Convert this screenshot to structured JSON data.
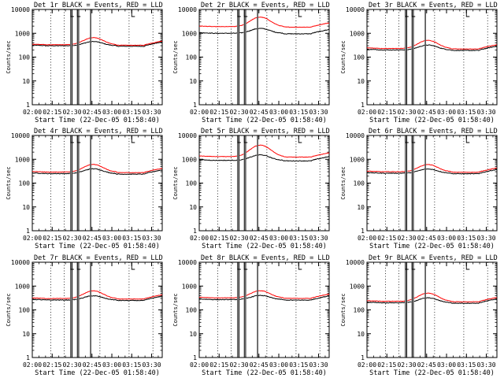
{
  "figure": {
    "background": "#ffffff",
    "colors": {
      "events": "#000000",
      "lld": "#ff0000",
      "axes": "#000000"
    }
  },
  "chart_data": [
    {
      "type": "line",
      "title": "Det 1r BLACK = Events, RED = LLD",
      "xlabel": "Start Time (22-Dec-05 01:58:40)",
      "ylabel": "Counts/sec",
      "x_ticks": [
        "02:00",
        "02:15",
        "02:30",
        "02:45",
        "03:00",
        "03:15",
        "03:30"
      ],
      "xlim": [
        "02:00",
        "03:38"
      ],
      "y_ticks": [
        "1",
        "10",
        "100",
        "1000",
        "10000"
      ],
      "ylim": [
        1,
        10000
      ],
      "yscale": "log",
      "grid": false,
      "series": [
        {
          "name": "Events",
          "color": "#000000",
          "level": "events"
        },
        {
          "name": "LLD",
          "color": "#ff0000",
          "level": "lld"
        }
      ],
      "events_base": 300,
      "lld_base": 330,
      "events_peak_ratio": 1.5,
      "lld_peak_ratio": 2.0
    },
    {
      "type": "line",
      "title": "Det 2r BLACK = Events, RED = LLD",
      "xlabel": "Start Time (22-Dec-05 01:58:40)",
      "ylabel": "Counts/sec",
      "x_ticks": [
        "02:00",
        "02:15",
        "02:30",
        "02:45",
        "03:00",
        "03:15",
        "03:30"
      ],
      "xlim": [
        "02:00",
        "03:38"
      ],
      "y_ticks": [
        "1",
        "10",
        "100",
        "1000",
        "10000"
      ],
      "ylim": [
        1,
        10000
      ],
      "yscale": "log",
      "grid": false,
      "series": [
        {
          "name": "Events",
          "color": "#000000",
          "level": "events"
        },
        {
          "name": "LLD",
          "color": "#ff0000",
          "level": "lld"
        }
      ],
      "events_base": 1000,
      "lld_base": 1900,
      "events_peak_ratio": 1.6,
      "lld_peak_ratio": 2.5
    },
    {
      "type": "line",
      "title": "Det 3r BLACK = Events, RED = LLD",
      "xlabel": "Start Time (22-Dec-05 01:58:40)",
      "ylabel": "Counts/sec",
      "x_ticks": [
        "02:00",
        "02:15",
        "02:30",
        "02:45",
        "03:00",
        "03:15",
        "03:30"
      ],
      "xlim": [
        "02:00",
        "03:38"
      ],
      "y_ticks": [
        "1",
        "10",
        "100",
        "1000",
        "10000"
      ],
      "ylim": [
        1,
        10000
      ],
      "yscale": "log",
      "grid": false,
      "series": [
        {
          "name": "Events",
          "color": "#000000",
          "level": "events"
        },
        {
          "name": "LLD",
          "color": "#ff0000",
          "level": "lld"
        }
      ],
      "events_base": 200,
      "lld_base": 230,
      "events_peak_ratio": 1.6,
      "lld_peak_ratio": 2.2
    },
    {
      "type": "line",
      "title": "Det 4r BLACK = Events, RED = LLD",
      "xlabel": "Start Time (22-Dec-05 01:58:40)",
      "ylabel": "Counts/sec",
      "x_ticks": [
        "02:00",
        "02:15",
        "02:30",
        "02:45",
        "03:00",
        "03:15",
        "03:30"
      ],
      "xlim": [
        "02:00",
        "03:38"
      ],
      "y_ticks": [
        "1",
        "10",
        "100",
        "1000",
        "10000"
      ],
      "ylim": [
        1,
        10000
      ],
      "yscale": "log",
      "grid": false,
      "series": [
        {
          "name": "Events",
          "color": "#000000",
          "level": "events"
        },
        {
          "name": "LLD",
          "color": "#ff0000",
          "level": "lld"
        }
      ],
      "events_base": 250,
      "lld_base": 290,
      "events_peak_ratio": 1.6,
      "lld_peak_ratio": 2.1
    },
    {
      "type": "line",
      "title": "Det 5r BLACK = Events, RED = LLD",
      "xlabel": "Start Time (22-Dec-05 01:58:40)",
      "ylabel": "Counts/sec",
      "x_ticks": [
        "02:00",
        "02:15",
        "02:30",
        "02:45",
        "03:00",
        "03:15",
        "03:30"
      ],
      "xlim": [
        "02:00",
        "03:38"
      ],
      "y_ticks": [
        "1",
        "10",
        "100",
        "1000",
        "10000"
      ],
      "ylim": [
        1,
        10000
      ],
      "yscale": "log",
      "grid": false,
      "series": [
        {
          "name": "Events",
          "color": "#000000",
          "level": "events"
        },
        {
          "name": "LLD",
          "color": "#ff0000",
          "level": "lld"
        }
      ],
      "events_base": 900,
      "lld_base": 1300,
      "events_peak_ratio": 1.7,
      "lld_peak_ratio": 3.0
    },
    {
      "type": "line",
      "title": "Det 6r BLACK = Events, RED = LLD",
      "xlabel": "Start Time (22-Dec-05 01:58:40)",
      "ylabel": "Counts/sec",
      "x_ticks": [
        "02:00",
        "02:15",
        "02:30",
        "02:45",
        "03:00",
        "03:15",
        "03:30"
      ],
      "xlim": [
        "02:00",
        "03:38"
      ],
      "y_ticks": [
        "1",
        "10",
        "100",
        "1000",
        "10000"
      ],
      "ylim": [
        1,
        10000
      ],
      "yscale": "log",
      "grid": false,
      "series": [
        {
          "name": "Events",
          "color": "#000000",
          "level": "events"
        },
        {
          "name": "LLD",
          "color": "#ff0000",
          "level": "lld"
        }
      ],
      "events_base": 260,
      "lld_base": 300,
      "events_peak_ratio": 1.5,
      "lld_peak_ratio": 2.0
    },
    {
      "type": "line",
      "title": "Det 7r BLACK = Events, RED = LLD",
      "xlabel": "Start Time (22-Dec-05 01:58:40)",
      "ylabel": "Counts/sec",
      "x_ticks": [
        "02:00",
        "02:15",
        "02:30",
        "02:45",
        "03:00",
        "03:15",
        "03:30"
      ],
      "xlim": [
        "02:00",
        "03:38"
      ],
      "y_ticks": [
        "1",
        "10",
        "100",
        "1000",
        "10000"
      ],
      "ylim": [
        1,
        10000
      ],
      "yscale": "log",
      "grid": false,
      "series": [
        {
          "name": "Events",
          "color": "#000000",
          "level": "events"
        },
        {
          "name": "LLD",
          "color": "#ff0000",
          "level": "lld"
        }
      ],
      "events_base": 260,
      "lld_base": 300,
      "events_peak_ratio": 1.5,
      "lld_peak_ratio": 2.1
    },
    {
      "type": "line",
      "title": "Det 8r BLACK = Events, RED = LLD",
      "xlabel": "Start Time (22-Dec-05 01:58:40)",
      "ylabel": "Counts/sec",
      "x_ticks": [
        "02:00",
        "02:15",
        "02:30",
        "02:45",
        "03:00",
        "03:15",
        "03:30"
      ],
      "xlim": [
        "02:00",
        "03:38"
      ],
      "y_ticks": [
        "1",
        "10",
        "100",
        "1000",
        "10000"
      ],
      "ylim": [
        1,
        10000
      ],
      "yscale": "log",
      "grid": false,
      "series": [
        {
          "name": "Events",
          "color": "#000000",
          "level": "events"
        },
        {
          "name": "LLD",
          "color": "#ff0000",
          "level": "lld"
        }
      ],
      "events_base": 270,
      "lld_base": 320,
      "events_peak_ratio": 1.5,
      "lld_peak_ratio": 2.0
    },
    {
      "type": "line",
      "title": "Det 9r BLACK = Events, RED = LLD",
      "xlabel": "Start Time (22-Dec-05 01:58:40)",
      "ylabel": "Counts/sec",
      "x_ticks": [
        "02:00",
        "02:15",
        "02:30",
        "02:45",
        "03:00",
        "03:15",
        "03:30"
      ],
      "xlim": [
        "02:00",
        "03:38"
      ],
      "y_ticks": [
        "1",
        "10",
        "100",
        "1000",
        "10000"
      ],
      "ylim": [
        1,
        10000
      ],
      "yscale": "log",
      "grid": false,
      "series": [
        {
          "name": "Events",
          "color": "#000000",
          "level": "events"
        },
        {
          "name": "LLD",
          "color": "#ff0000",
          "level": "lld"
        }
      ],
      "events_base": 200,
      "lld_base": 230,
      "events_peak_ratio": 1.6,
      "lld_peak_ratio": 2.2
    }
  ],
  "markers": {
    "dotted_times": [
      "02:14",
      "02:24",
      "02:51",
      "03:13",
      "03:31"
    ],
    "gap_intervals": [
      [
        "02:29",
        "02:30"
      ],
      [
        "02:34",
        "02:35"
      ],
      [
        "02:44",
        "02:44"
      ]
    ],
    "flag_times": [
      "02:29",
      "02:34",
      "03:15"
    ]
  }
}
